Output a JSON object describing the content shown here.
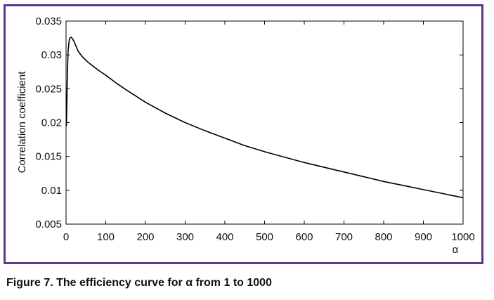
{
  "caption": "Figure 7. The efficiency curve for α from 1 to 1000",
  "colors": {
    "frame": "#5b3a8e",
    "line": "#000000",
    "axes": "#000000"
  },
  "chart_data": {
    "type": "line",
    "title": "",
    "xlabel": "α",
    "ylabel": "Correlation coefficient",
    "xlim": [
      0,
      1000
    ],
    "ylim": [
      0.005,
      0.035
    ],
    "xticks": [
      0,
      100,
      200,
      300,
      400,
      500,
      600,
      700,
      800,
      900,
      1000
    ],
    "xtick_labels": [
      "0",
      "100",
      "200",
      "300",
      "400",
      "500",
      "600",
      "700",
      "800",
      "900",
      "1000"
    ],
    "yticks": [
      0.005,
      0.01,
      0.015,
      0.02,
      0.025,
      0.03,
      0.035
    ],
    "ytick_labels": [
      "0.005",
      "0.01",
      "0.015",
      "0.02",
      "0.025",
      "0.03",
      "0.035"
    ],
    "grid": false,
    "legend": "none",
    "series": [
      {
        "x": [
          1,
          3,
          5,
          8,
          10,
          13,
          15,
          20,
          25,
          30,
          40,
          50,
          60,
          80,
          100,
          125,
          150,
          200,
          250,
          300,
          350,
          400,
          450,
          500,
          550,
          600,
          650,
          700,
          750,
          800,
          850,
          900,
          950,
          1000
        ],
        "values": [
          0.0195,
          0.0262,
          0.0305,
          0.0322,
          0.0325,
          0.0326,
          0.0325,
          0.032,
          0.0313,
          0.0306,
          0.0298,
          0.0292,
          0.0287,
          0.0278,
          0.027,
          0.0259,
          0.0249,
          0.023,
          0.0214,
          0.02,
          0.0188,
          0.0177,
          0.0166,
          0.0157,
          0.0149,
          0.0141,
          0.0134,
          0.0127,
          0.012,
          0.0113,
          0.0107,
          0.0101,
          0.0095,
          0.0089
        ]
      }
    ]
  }
}
